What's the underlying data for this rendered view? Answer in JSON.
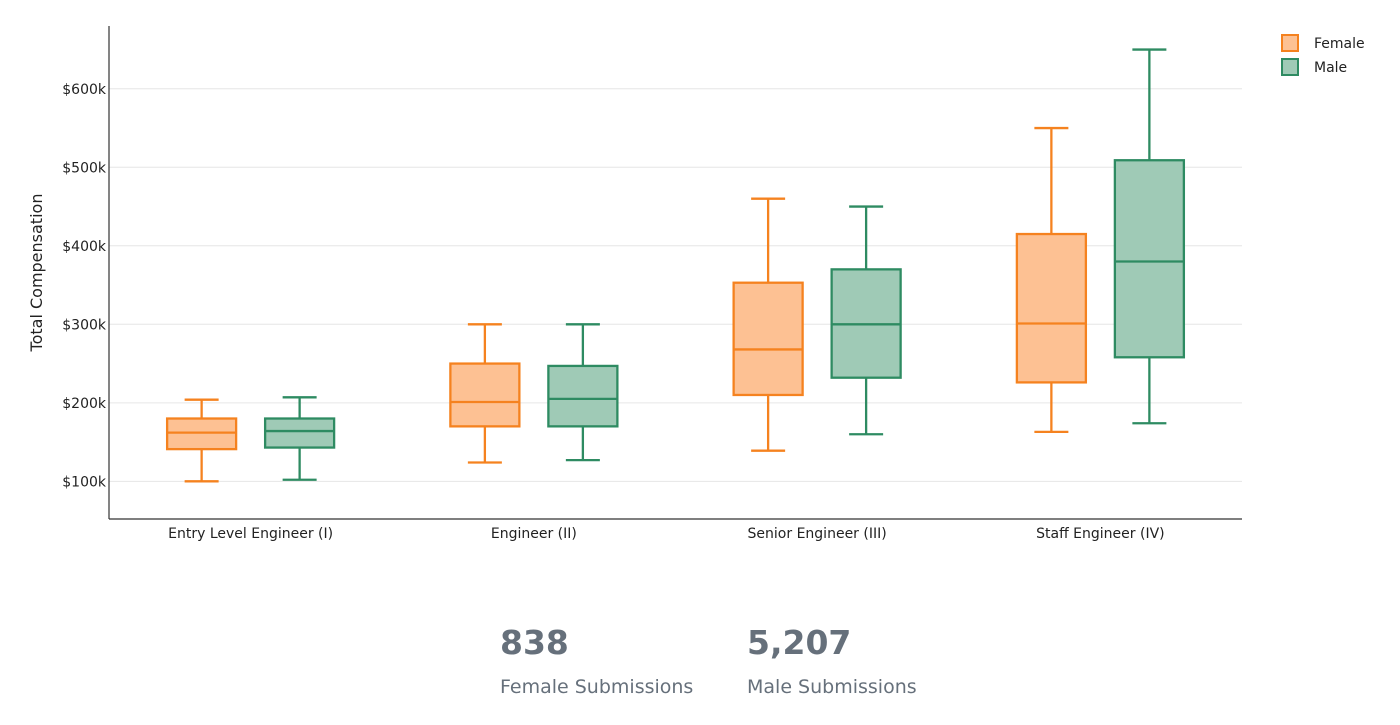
{
  "chart_data": {
    "type": "box",
    "ylabel": "Total Compensation",
    "ylim": [
      52000,
      680000
    ],
    "yticks": [
      100000,
      200000,
      300000,
      400000,
      500000,
      600000
    ],
    "ytick_labels": [
      "$100k",
      "$200k",
      "$300k",
      "$400k",
      "$500k",
      "$600k"
    ],
    "grid": true,
    "legend_position": "top-right",
    "categories": [
      "Entry Level Engineer (I)",
      "Engineer (II)",
      "Senior Engineer (III)",
      "Staff Engineer (IV)"
    ],
    "series": [
      {
        "name": "Female",
        "stroke": "#f5821f",
        "fill": "#fdc193",
        "boxes": [
          {
            "min": 100000,
            "q1": 141000,
            "median": 162000,
            "q3": 180000,
            "max": 204000
          },
          {
            "min": 124000,
            "q1": 170000,
            "median": 201000,
            "q3": 250000,
            "max": 300000
          },
          {
            "min": 139000,
            "q1": 210000,
            "median": 268000,
            "q3": 353000,
            "max": 460000
          },
          {
            "min": 163000,
            "q1": 226000,
            "median": 301000,
            "q3": 415000,
            "max": 550000
          }
        ]
      },
      {
        "name": "Male",
        "stroke": "#2e8b62",
        "fill": "#9fcab6",
        "boxes": [
          {
            "min": 102000,
            "q1": 143000,
            "median": 164000,
            "q3": 180000,
            "max": 207000
          },
          {
            "min": 127000,
            "q1": 170000,
            "median": 205000,
            "q3": 247000,
            "max": 300000
          },
          {
            "min": 160000,
            "q1": 232000,
            "median": 300000,
            "q3": 370000,
            "max": 450000
          },
          {
            "min": 174000,
            "q1": 258000,
            "median": 380000,
            "q3": 509000,
            "max": 650000
          }
        ]
      }
    ]
  },
  "stats": {
    "female": {
      "value": "838",
      "label": "Female Submissions"
    },
    "male": {
      "value": "5,207",
      "label": "Male Submissions"
    }
  }
}
